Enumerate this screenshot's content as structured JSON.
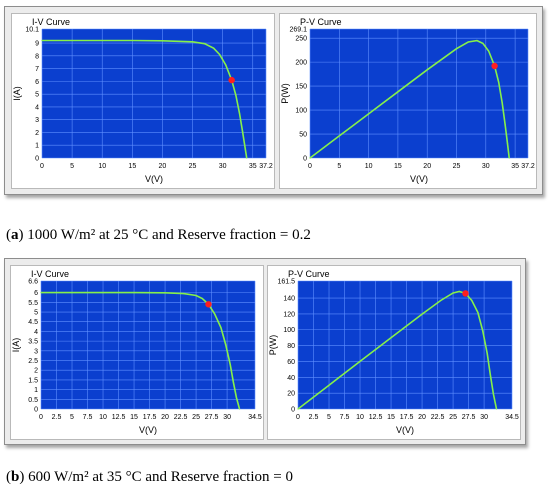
{
  "captions": [
    {
      "tag": "a",
      "text": "1000 W/m² at 25 °C and Reserve fraction = 0.2"
    },
    {
      "tag": "b",
      "text": "600 W/m² at 35 °C and Reserve fraction = 0"
    }
  ],
  "colors": {
    "plot_bg": "#0b3fcf",
    "grid": "#5f8fff",
    "curve": "#86f04a",
    "marker": "#ff1f1f"
  },
  "chart_data": [
    {
      "type": "line",
      "title": "I-V Curve",
      "xlabel": "V(V)",
      "ylabel": "I(A)",
      "xlim": [
        0,
        37.2
      ],
      "ylim": [
        0,
        10.1
      ],
      "xticks": [
        "0",
        "5",
        "10",
        "15",
        "20",
        "25",
        "30",
        "35",
        "37.2"
      ],
      "yticks": [
        "0",
        "1",
        "2",
        "3",
        "4",
        "5",
        "6",
        "7",
        "8",
        "9",
        "10.1"
      ],
      "x": [
        0,
        5,
        10,
        15,
        20,
        25,
        27,
        28.5,
        29.5,
        30.5,
        31.5,
        32.2,
        32.8,
        33.3,
        33.7,
        34.0
      ],
      "y": [
        9.2,
        9.2,
        9.2,
        9.2,
        9.18,
        9.1,
        8.95,
        8.6,
        8.1,
        7.3,
        6.1,
        4.9,
        3.5,
        2.1,
        0.9,
        0
      ],
      "marker": {
        "x": 31.5,
        "y": 6.1
      }
    },
    {
      "type": "line",
      "title": "P-V Curve",
      "xlabel": "V(V)",
      "ylabel": "P(W)",
      "xlim": [
        0,
        37.2
      ],
      "ylim": [
        0,
        269.1
      ],
      "xticks": [
        "0",
        "5",
        "10",
        "15",
        "20",
        "25",
        "30",
        "35",
        "37.2"
      ],
      "yticks": [
        "0",
        "50",
        "100",
        "150",
        "200",
        "250",
        "269.1"
      ],
      "x": [
        0,
        5,
        10,
        15,
        20,
        25,
        27,
        28.5,
        29.5,
        30.5,
        31.5,
        32.2,
        32.8,
        33.3,
        33.7,
        34.0
      ],
      "y": [
        0,
        46,
        92,
        138,
        184,
        228,
        242,
        245,
        239,
        223,
        192,
        158,
        115,
        70,
        30,
        0
      ],
      "marker": {
        "x": 31.5,
        "y": 192
      }
    },
    {
      "type": "line",
      "title": "I-V Curve",
      "xlabel": "V(V)",
      "ylabel": "I(A)",
      "xlim": [
        0,
        34.5
      ],
      "ylim": [
        0,
        6.6
      ],
      "xticks": [
        "0",
        "2.5",
        "5",
        "7.5",
        "10",
        "12.5",
        "15",
        "17.5",
        "20",
        "22.5",
        "25",
        "27.5",
        "30",
        "34.5"
      ],
      "yticks": [
        "0",
        "0.5",
        "1",
        "1.5",
        "2",
        "2.5",
        "3",
        "3.5",
        "4",
        "4.5",
        "5",
        "5.5",
        "6",
        "6.6"
      ],
      "x": [
        0,
        5,
        10,
        15,
        20,
        23,
        25,
        26,
        27,
        28,
        29,
        29.8,
        30.5,
        31.0,
        31.5,
        32.0
      ],
      "y": [
        6.0,
        6.0,
        6.0,
        6.0,
        5.99,
        5.95,
        5.85,
        5.7,
        5.4,
        4.9,
        4.2,
        3.3,
        2.3,
        1.4,
        0.6,
        0
      ],
      "marker": {
        "x": 27,
        "y": 5.4
      }
    },
    {
      "type": "line",
      "title": "P-V Curve",
      "xlabel": "V(V)",
      "ylabel": "P(W)",
      "xlim": [
        0,
        34.5
      ],
      "ylim": [
        0,
        161.5
      ],
      "xticks": [
        "0",
        "2.5",
        "5",
        "7.5",
        "10",
        "12.5",
        "15",
        "17.5",
        "20",
        "22.5",
        "25",
        "27.5",
        "30",
        "34.5"
      ],
      "yticks": [
        "0",
        "20",
        "40",
        "60",
        "80",
        "100",
        "120",
        "140",
        "161.5"
      ],
      "x": [
        0,
        5,
        10,
        15,
        20,
        23,
        25,
        26,
        27,
        28,
        29,
        29.8,
        30.5,
        31.0,
        31.5,
        32.0
      ],
      "y": [
        0,
        30,
        60,
        90,
        119.8,
        136.9,
        146.3,
        148.2,
        145.8,
        137.2,
        121.8,
        98.3,
        70.2,
        43.4,
        18.9,
        0
      ],
      "marker": {
        "x": 27,
        "y": 145.8
      }
    }
  ]
}
